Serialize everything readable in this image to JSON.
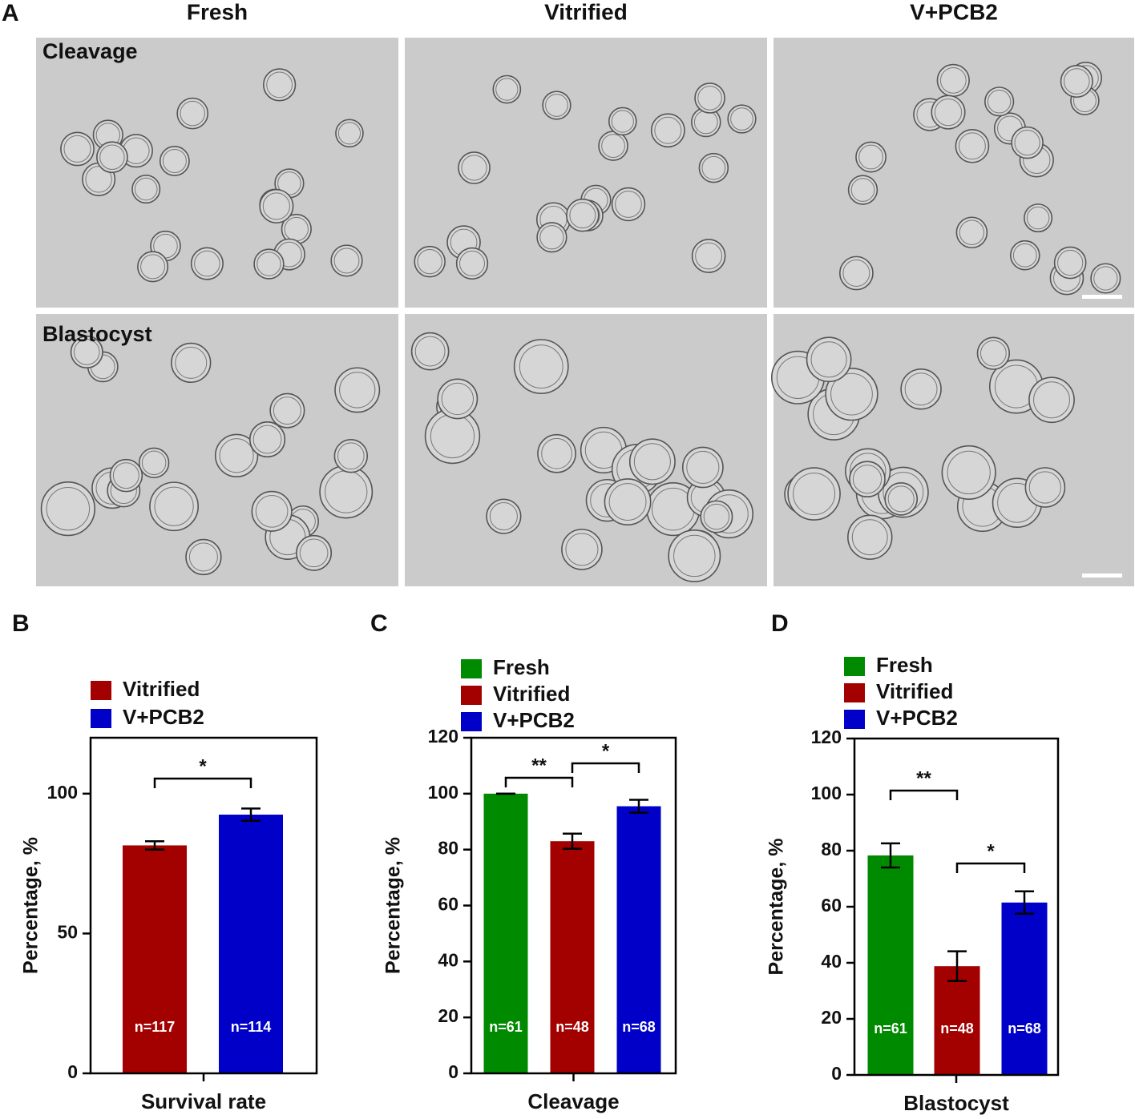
{
  "panel_a": {
    "label": "A",
    "columns": [
      "Fresh",
      "Vitrified",
      "V+PCB2"
    ],
    "rows": [
      "Cleavage",
      "Blastocyst"
    ]
  },
  "chart_data": [
    {
      "type": "bar",
      "panel_label": "B",
      "ylabel": "Percentage, %",
      "categories": [
        "Survival rate"
      ],
      "ylim": [
        0,
        120
      ],
      "yticks": [
        0,
        50,
        100
      ],
      "series": [
        {
          "name": "Vitrified",
          "color": "#a30000",
          "values": [
            81.5
          ],
          "errors": [
            1.5
          ],
          "n_labels": [
            "n=117"
          ]
        },
        {
          "name": "V+PCB2",
          "color": "#0000c8",
          "values": [
            92.5
          ],
          "errors": [
            2.2
          ],
          "n_labels": [
            "n=114"
          ]
        }
      ],
      "significance": [
        {
          "label": "*",
          "between": [
            "Vitrified",
            "V+PCB2"
          ]
        }
      ]
    },
    {
      "type": "bar",
      "panel_label": "C",
      "ylabel": "Percentage, %",
      "categories": [
        "Cleavage"
      ],
      "ylim": [
        0,
        120
      ],
      "yticks": [
        0,
        20,
        40,
        60,
        80,
        100,
        120
      ],
      "series": [
        {
          "name": "Fresh",
          "color": "#008a00",
          "values": [
            100
          ],
          "errors": [
            0
          ],
          "n_labels": [
            "n=61"
          ]
        },
        {
          "name": "Vitrified",
          "color": "#a30000",
          "values": [
            83
          ],
          "errors": [
            2.7
          ],
          "n_labels": [
            "n=48"
          ]
        },
        {
          "name": "V+PCB2",
          "color": "#0000c8",
          "values": [
            95.5
          ],
          "errors": [
            2.3
          ],
          "n_labels": [
            "n=68"
          ]
        }
      ],
      "significance": [
        {
          "label": "**",
          "between": [
            "Fresh",
            "Vitrified"
          ]
        },
        {
          "label": "*",
          "between": [
            "Vitrified",
            "V+PCB2"
          ]
        }
      ]
    },
    {
      "type": "bar",
      "panel_label": "D",
      "ylabel": "Percentage, %",
      "categories": [
        "Blastocyst"
      ],
      "ylim": [
        0,
        120
      ],
      "yticks": [
        0,
        20,
        40,
        60,
        80,
        100,
        120
      ],
      "series": [
        {
          "name": "Fresh",
          "color": "#008a00",
          "values": [
            78.3
          ],
          "errors": [
            4.3
          ],
          "n_labels": [
            "n=61"
          ]
        },
        {
          "name": "Vitrified",
          "color": "#a30000",
          "values": [
            38.8
          ],
          "errors": [
            5.3
          ],
          "n_labels": [
            "n=48"
          ]
        },
        {
          "name": "V+PCB2",
          "color": "#0000c8",
          "values": [
            61.5
          ],
          "errors": [
            4
          ],
          "n_labels": [
            "n=68"
          ]
        }
      ],
      "significance": [
        {
          "label": "**",
          "between": [
            "Fresh",
            "Vitrified"
          ]
        },
        {
          "label": "*",
          "between": [
            "Vitrified",
            "V+PCB2"
          ]
        }
      ]
    }
  ]
}
